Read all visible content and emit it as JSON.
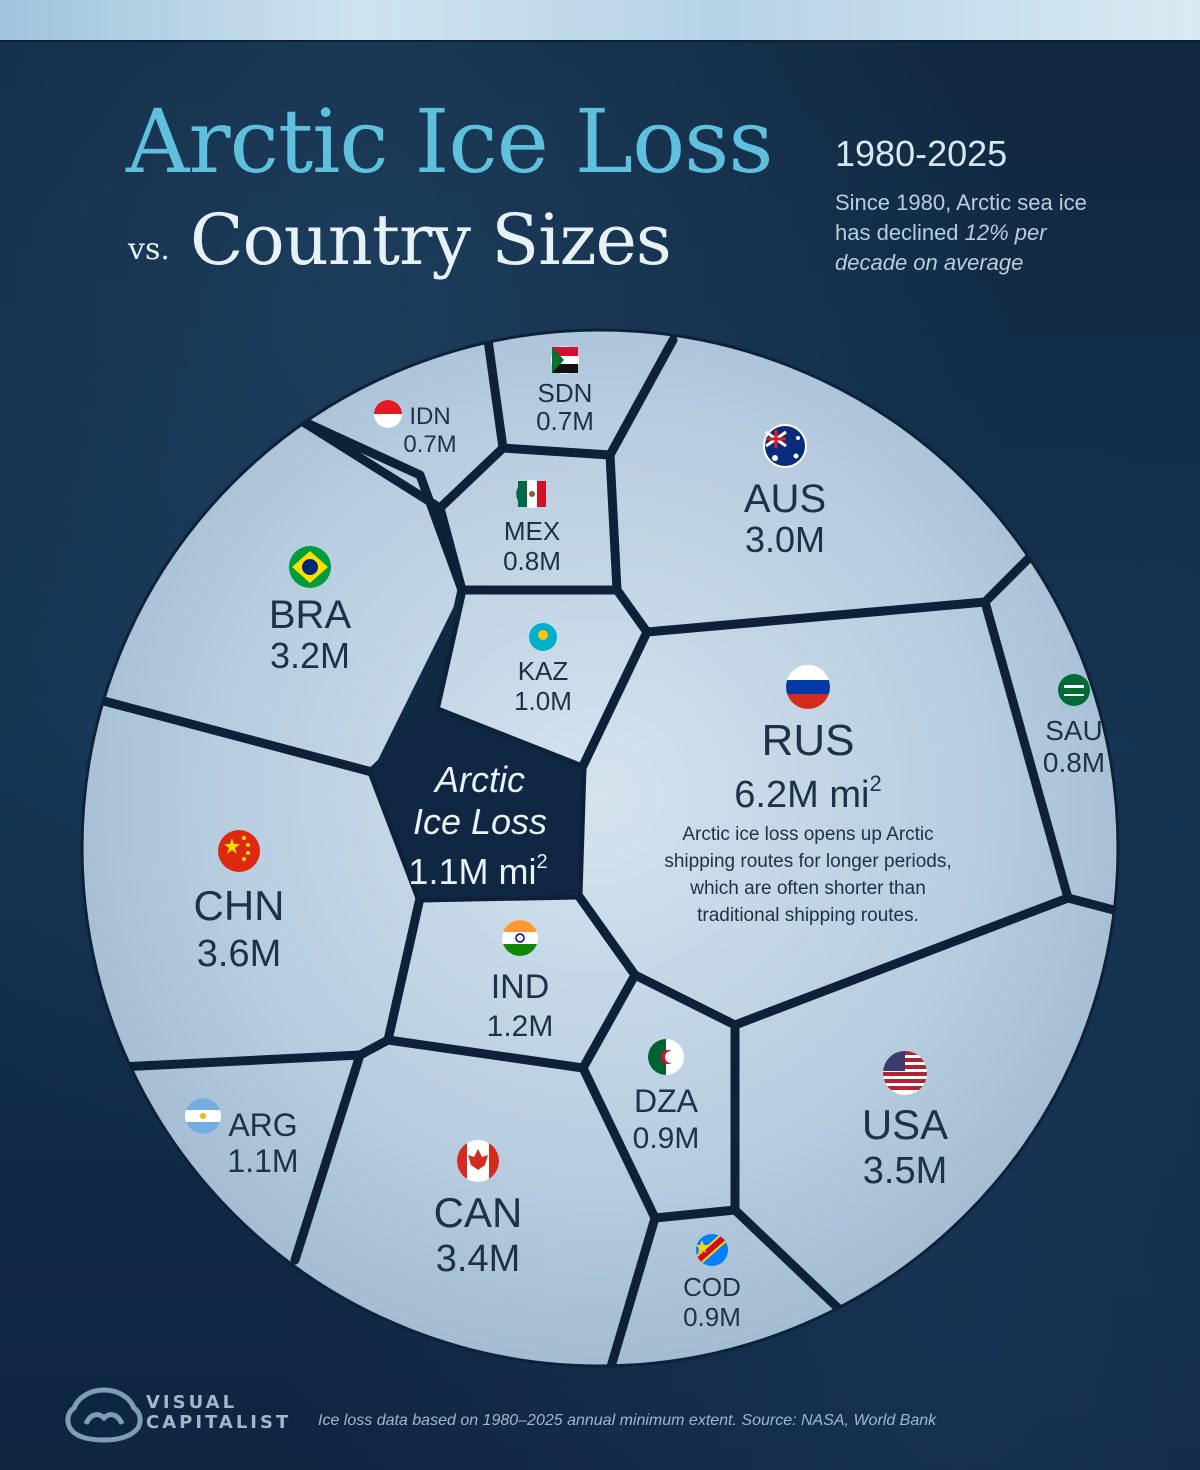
{
  "header": {
    "title_line1": "Arctic Ice Loss",
    "title_vs": "vs.",
    "title_line2": "Country Sizes",
    "years": "1980-2025",
    "subtitle_plain": "Since 1980, Arctic sea ice has declined ",
    "subtitle_emphasis": "12% per decade on average"
  },
  "chart_data": {
    "type": "voronoi-treemap",
    "unit": "M",
    "center": {
      "label_line1": "Arctic",
      "label_line2": "Ice Loss",
      "value_text": "1.1M mi",
      "value": 1.1
    },
    "annotation": [
      "Arctic ice loss opens up Arctic",
      "shipping routes for longer periods,",
      "which are often shorter than",
      "traditional shipping routes."
    ],
    "cells": [
      {
        "code": "RUS",
        "value": 6.2,
        "value_text": "6.2M mi"
      },
      {
        "code": "CHN",
        "value": 3.6,
        "value_text": "3.6M"
      },
      {
        "code": "USA",
        "value": 3.5,
        "value_text": "3.5M"
      },
      {
        "code": "CAN",
        "value": 3.4,
        "value_text": "3.4M"
      },
      {
        "code": "BRA",
        "value": 3.2,
        "value_text": "3.2M"
      },
      {
        "code": "AUS",
        "value": 3.0,
        "value_text": "3.0M"
      },
      {
        "code": "IND",
        "value": 1.2,
        "value_text": "1.2M"
      },
      {
        "code": "ARG",
        "value": 1.1,
        "value_text": "1.1M"
      },
      {
        "code": "KAZ",
        "value": 1.0,
        "value_text": "1.0M"
      },
      {
        "code": "DZA",
        "value": 0.9,
        "value_text": "0.9M"
      },
      {
        "code": "COD",
        "value": 0.9,
        "value_text": "0.9M"
      },
      {
        "code": "SAU",
        "value": 0.8,
        "value_text": "0.8M"
      },
      {
        "code": "MEX",
        "value": 0.8,
        "value_text": "0.8M"
      },
      {
        "code": "IDN",
        "value": 0.7,
        "value_text": "0.7M"
      },
      {
        "code": "SDN",
        "value": 0.7,
        "value_text": "0.7M"
      }
    ]
  },
  "footer": {
    "brand_line1": "VISUAL",
    "brand_line2": "CAPITALIST",
    "note": "Ice loss data based on 1980–2025 annual minimum extent. Source: NASA, World Bank"
  },
  "colors": {
    "background": "#0f2742",
    "title_accent": "#5fc0de",
    "ice": "#b9cfdf",
    "crack": "#0d2238",
    "label": "#1d3147"
  }
}
